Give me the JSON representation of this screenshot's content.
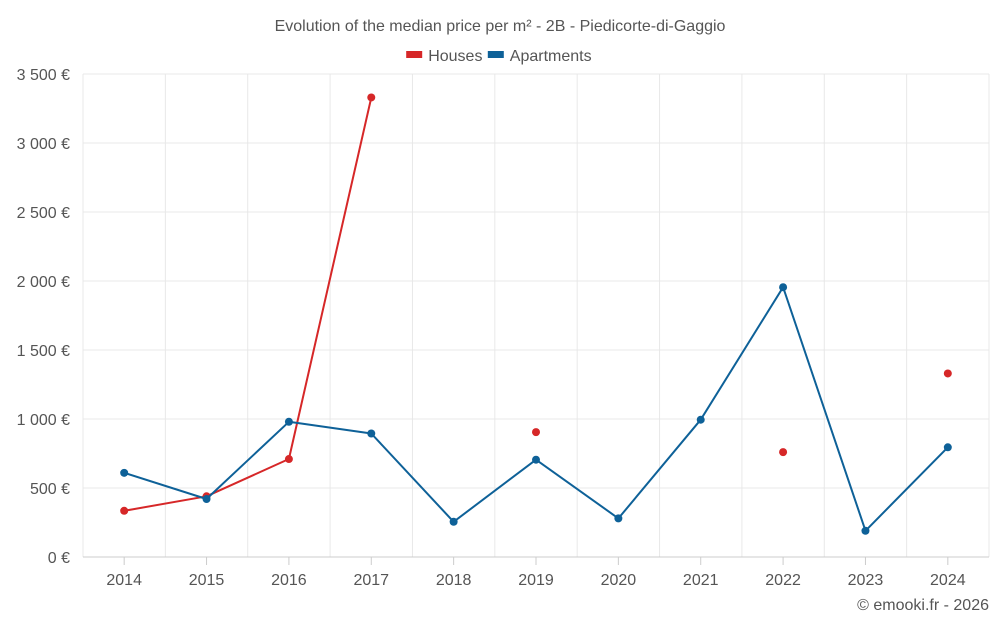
{
  "chart_data": {
    "type": "line",
    "title": "Evolution of the median price per m² - 2B - Piedicorte-di-Gaggio",
    "xlabel": "",
    "ylabel": "",
    "categories": [
      "2014",
      "2015",
      "2016",
      "2017",
      "2018",
      "2019",
      "2020",
      "2021",
      "2022",
      "2023",
      "2024"
    ],
    "ylim": [
      0,
      3500
    ],
    "yticks": [
      0,
      500,
      1000,
      1500,
      2000,
      2500,
      3000,
      3500
    ],
    "ytick_labels": [
      "0 €",
      "500 €",
      "1 000 €",
      "1 500 €",
      "2 000 €",
      "2 500 €",
      "3 000 €",
      "3 500 €"
    ],
    "grid": true,
    "legend_position": "top-center",
    "series": [
      {
        "name": "Houses",
        "color": "#d62728",
        "values": [
          335,
          440,
          710,
          3330,
          null,
          905,
          null,
          null,
          760,
          null,
          1330
        ]
      },
      {
        "name": "Apartments",
        "color": "#0e6198",
        "values": [
          610,
          420,
          980,
          895,
          255,
          705,
          280,
          995,
          1955,
          190,
          795
        ]
      }
    ]
  },
  "credit": "© emooki.fr - 2026"
}
